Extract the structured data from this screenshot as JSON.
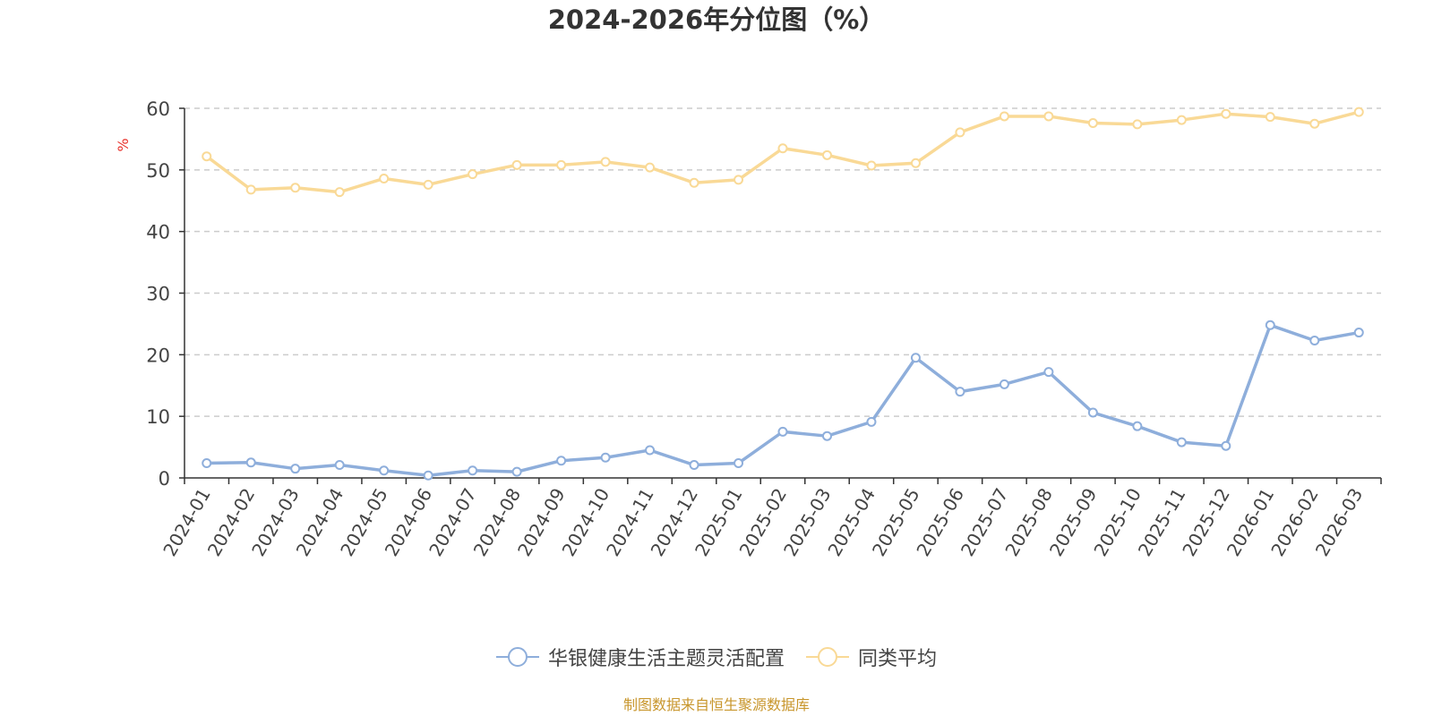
{
  "chart_data": {
    "type": "line",
    "title": "2024-2026年分位图（%）",
    "xlabel": "",
    "ylabel": "%",
    "ylim": [
      0,
      60
    ],
    "yticks": [
      0,
      10,
      20,
      30,
      40,
      50,
      60
    ],
    "grid": true,
    "legend_position": "bottom-center",
    "categories": [
      "2024-01",
      "2024-02",
      "2024-03",
      "2024-04",
      "2024-05",
      "2024-06",
      "2024-07",
      "2024-08",
      "2024-09",
      "2024-10",
      "2024-11",
      "2024-12",
      "2025-01",
      "2025-02",
      "2025-03",
      "2025-04",
      "2025-05",
      "2025-06",
      "2025-07",
      "2025-08",
      "2025-09",
      "2025-10",
      "2025-11",
      "2025-12",
      "2026-01",
      "2026-02",
      "2026-03"
    ],
    "series": [
      {
        "name": "华银健康生活主题灵活配置",
        "color": "#8eaedb",
        "values": [
          2.4,
          2.5,
          1.5,
          2.1,
          1.2,
          0.4,
          1.2,
          1.0,
          2.8,
          3.3,
          4.5,
          2.1,
          2.4,
          7.5,
          6.8,
          9.1,
          19.5,
          14.0,
          15.2,
          17.2,
          10.6,
          8.4,
          5.8,
          5.2,
          24.8,
          22.3,
          23.6
        ]
      },
      {
        "name": "同类平均",
        "color": "#f9d996",
        "values": [
          52.2,
          46.8,
          47.1,
          46.4,
          48.6,
          47.6,
          49.3,
          50.8,
          50.8,
          51.3,
          50.4,
          47.9,
          48.4,
          53.5,
          52.4,
          50.7,
          51.1,
          56.1,
          58.7,
          58.7,
          57.6,
          57.4,
          58.1,
          59.1,
          58.6,
          57.5,
          59.4
        ]
      }
    ],
    "source_note": "制图数据来自恒生聚源数据库"
  }
}
